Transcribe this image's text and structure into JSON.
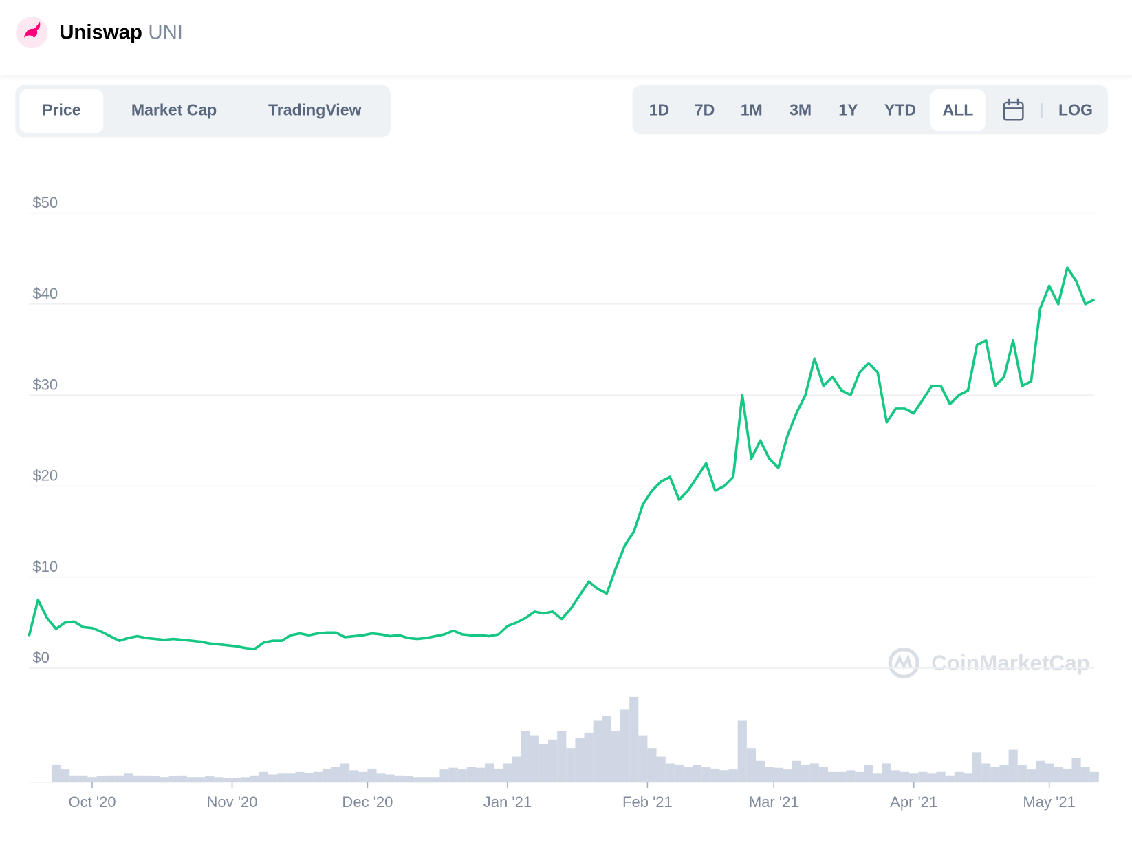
{
  "header": {
    "name": "Uniswap",
    "symbol": "UNI"
  },
  "tabs": [
    "Price",
    "Market Cap",
    "TradingView"
  ],
  "selected_tab": 0,
  "ranges": [
    "1D",
    "7D",
    "1M",
    "3M",
    "1Y",
    "YTD",
    "ALL"
  ],
  "selected_range": 6,
  "log_toggle": "LOG",
  "watermark": "CoinMarketCap",
  "chart_data": {
    "type": "line",
    "color": "#16c784",
    "log_scale": false,
    "grid": true,
    "values": [
      3.5,
      7.5,
      5.5,
      4.3,
      5.0,
      5.1,
      4.5,
      4.4,
      4.0,
      3.5,
      3.0,
      3.3,
      3.5,
      3.3,
      3.2,
      3.1,
      3.2,
      3.1,
      3.0,
      2.9,
      2.7,
      2.6,
      2.5,
      2.4,
      2.2,
      2.1,
      2.8,
      3.0,
      3.0,
      3.6,
      3.8,
      3.6,
      3.8,
      3.9,
      3.9,
      3.4,
      3.5,
      3.6,
      3.8,
      3.7,
      3.5,
      3.6,
      3.3,
      3.2,
      3.3,
      3.5,
      3.7,
      4.1,
      3.7,
      3.6,
      3.6,
      3.5,
      3.7,
      4.6,
      5.0,
      5.5,
      6.2,
      6.0,
      6.2,
      5.4,
      6.5,
      8.0,
      9.5,
      8.7,
      8.2,
      11.0,
      13.5,
      15.0,
      18.0,
      19.5,
      20.5,
      21.0,
      18.5,
      19.5,
      21.0,
      22.5,
      19.5,
      20.0,
      21.0,
      30.0,
      23.0,
      25.0,
      23.0,
      22.0,
      25.5,
      28.0,
      30.0,
      34.0,
      31.0,
      32.0,
      30.5,
      30.0,
      32.5,
      33.5,
      32.5,
      27.0,
      28.5,
      28.5,
      28.0,
      29.5,
      31.0,
      31.0,
      29.0,
      30.0,
      30.5,
      35.5,
      36.0,
      31.0,
      32.0,
      36.0,
      31.0,
      31.5,
      39.5,
      42.0,
      40.0,
      44.0,
      42.5,
      40.0,
      40.5
    ],
    "volume": {
      "color": "#cfd6e4",
      "values": [
        0,
        0,
        0,
        20,
        15,
        8,
        8,
        6,
        7,
        8,
        8,
        10,
        8,
        8,
        7,
        6,
        7,
        8,
        6,
        6,
        7,
        6,
        5,
        5,
        6,
        8,
        12,
        9,
        10,
        10,
        12,
        11,
        12,
        16,
        18,
        22,
        14,
        12,
        16,
        10,
        9,
        8,
        7,
        6,
        6,
        6,
        15,
        17,
        15,
        18,
        17,
        22,
        16,
        22,
        30,
        60,
        55,
        45,
        50,
        60,
        40,
        52,
        58,
        72,
        78,
        60,
        85,
        100,
        55,
        40,
        30,
        22,
        20,
        18,
        20,
        18,
        16,
        14,
        15,
        72,
        40,
        25,
        18,
        17,
        15,
        25,
        20,
        22,
        18,
        12,
        12,
        14,
        12,
        20,
        10,
        22,
        14,
        12,
        10,
        12,
        10,
        12,
        8,
        12,
        10,
        35,
        22,
        18,
        20,
        38,
        20,
        15,
        25,
        22,
        18,
        16,
        28,
        18,
        12
      ]
    },
    "xlim": [
      0,
      118
    ],
    "xticks": [
      {
        "value": 7,
        "label": "Oct '20"
      },
      {
        "value": 22.5,
        "label": "Nov '20"
      },
      {
        "value": 37.5,
        "label": "Dec '20"
      },
      {
        "value": 53,
        "label": "Jan '21"
      },
      {
        "value": 68.5,
        "label": "Feb '21"
      },
      {
        "value": 82.5,
        "label": "Mar '21"
      },
      {
        "value": 98,
        "label": "Apr '21"
      },
      {
        "value": 113,
        "label": "May '21"
      }
    ],
    "ylim": [
      0,
      50
    ],
    "yticks": [
      {
        "value": 0,
        "label": "$0"
      },
      {
        "value": 10,
        "label": "$10"
      },
      {
        "value": 20,
        "label": "$20"
      },
      {
        "value": 30,
        "label": "$30"
      },
      {
        "value": 40,
        "label": "$40"
      },
      {
        "value": 50,
        "label": "$50"
      }
    ]
  }
}
